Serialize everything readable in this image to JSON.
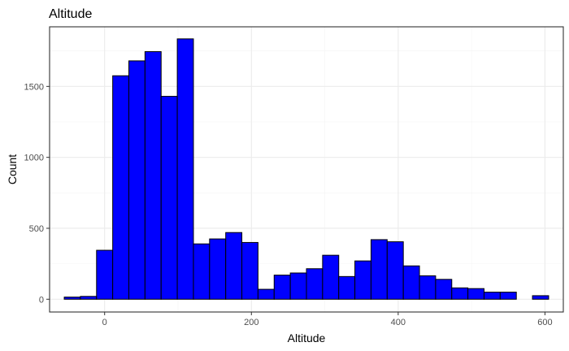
{
  "chart_data": {
    "type": "bar",
    "title": "Altitude",
    "xlabel": "Altitude",
    "ylabel": "Count",
    "xlim": [
      -75,
      625
    ],
    "ylim": [
      -90,
      1920
    ],
    "x_ticks": [
      0,
      200,
      400,
      600
    ],
    "y_ticks": [
      0,
      500,
      1000,
      1500
    ],
    "x_minor_ticks": [
      -100,
      100,
      300,
      500,
      700
    ],
    "y_minor_ticks": [
      250,
      750,
      1250,
      1750
    ],
    "grid": true,
    "legend": "none",
    "bin_width": 22,
    "bins": [
      {
        "start": -55,
        "end": -33,
        "count": 15
      },
      {
        "start": -33,
        "end": -11,
        "count": 20
      },
      {
        "start": -11,
        "end": 11,
        "count": 345
      },
      {
        "start": 11,
        "end": 33,
        "count": 1575
      },
      {
        "start": 33,
        "end": 55,
        "count": 1680
      },
      {
        "start": 55,
        "end": 77,
        "count": 1745
      },
      {
        "start": 77,
        "end": 99,
        "count": 1430
      },
      {
        "start": 99,
        "end": 121,
        "count": 1835
      },
      {
        "start": 121,
        "end": 143,
        "count": 390
      },
      {
        "start": 143,
        "end": 165,
        "count": 425
      },
      {
        "start": 165,
        "end": 187,
        "count": 470
      },
      {
        "start": 187,
        "end": 209,
        "count": 400
      },
      {
        "start": 209,
        "end": 231,
        "count": 70
      },
      {
        "start": 231,
        "end": 253,
        "count": 170
      },
      {
        "start": 253,
        "end": 275,
        "count": 185
      },
      {
        "start": 275,
        "end": 297,
        "count": 215
      },
      {
        "start": 297,
        "end": 319,
        "count": 310
      },
      {
        "start": 319,
        "end": 341,
        "count": 160
      },
      {
        "start": 341,
        "end": 363,
        "count": 270
      },
      {
        "start": 363,
        "end": 385,
        "count": 420
      },
      {
        "start": 385,
        "end": 407,
        "count": 405
      },
      {
        "start": 407,
        "end": 429,
        "count": 235
      },
      {
        "start": 429,
        "end": 451,
        "count": 165
      },
      {
        "start": 451,
        "end": 473,
        "count": 140
      },
      {
        "start": 473,
        "end": 495,
        "count": 80
      },
      {
        "start": 495,
        "end": 517,
        "count": 75
      },
      {
        "start": 517,
        "end": 539,
        "count": 50
      },
      {
        "start": 539,
        "end": 561,
        "count": 50
      },
      {
        "start": 561,
        "end": 583,
        "count": 0
      },
      {
        "start": 583,
        "end": 605,
        "count": 25
      }
    ],
    "bar_fill": "#0000ff",
    "bar_outline": "#000000"
  }
}
